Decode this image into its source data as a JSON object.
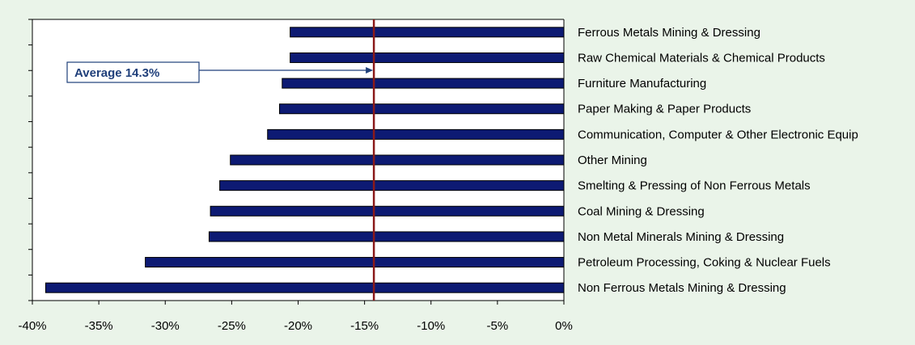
{
  "chart_data": {
    "type": "bar",
    "orientation": "horizontal",
    "categories": [
      "Ferrous Metals Mining & Dressing",
      "Raw Chemical Materials & Chemical Products",
      "Furniture Manufacturing",
      "Paper Making & Paper Products",
      "Communication, Computer & Other Electronic Equip",
      "Other Mining",
      "Smelting & Pressing of Non Ferrous Metals",
      "Coal Mining & Dressing",
      "Non Metal Minerals Mining & Dressing",
      "Petroleum Processing, Coking & Nuclear Fuels",
      "Non Ferrous Metals Mining & Dressing"
    ],
    "values": [
      -20.6,
      -20.6,
      -21.2,
      -21.4,
      -22.3,
      -25.1,
      -25.9,
      -26.6,
      -26.7,
      -31.5,
      -39.0
    ],
    "xlim": [
      -40,
      0
    ],
    "xticks": [
      -40,
      -35,
      -30,
      -25,
      -20,
      -15,
      -10,
      -5,
      0
    ],
    "xtick_labels": [
      "-40%",
      "-35%",
      "-30%",
      "-25%",
      "-20%",
      "-15%",
      "-10%",
      "-5%",
      "0%"
    ],
    "reference_line": {
      "value": -14.3,
      "label": "Average 14.3%"
    },
    "title": "",
    "xlabel": "",
    "ylabel": "",
    "grid": false,
    "colors": {
      "bar": "#0d1a73",
      "reference_line": "#8b1a1a",
      "annotation_text": "#1f3f7a",
      "annotation_border": "#1f3f7a",
      "plot_background": "#ffffff",
      "page_background": "#eaf4e9"
    }
  }
}
